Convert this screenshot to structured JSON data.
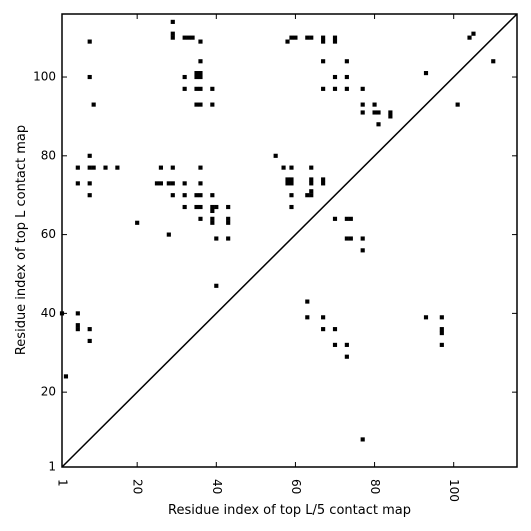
{
  "chart_data": {
    "type": "scatter",
    "xlabel": "Residue index of top L/5 contact map",
    "ylabel": "Residue index of top L contact map",
    "xlim": [
      1,
      116
    ],
    "ylim": [
      1,
      116
    ],
    "xticks": [
      1,
      20,
      40,
      60,
      80,
      100
    ],
    "yticks": [
      1,
      20,
      40,
      60,
      80,
      100
    ],
    "xtick_labels": [
      "1",
      "20",
      "40",
      "60",
      "80",
      "100"
    ],
    "ytick_labels": [
      "1",
      "20",
      "40",
      "60",
      "80",
      "100"
    ],
    "xtick_rotation_deg": 90,
    "diagonal": true,
    "grid": false,
    "marker": "square",
    "color": "#000000",
    "series": [
      {
        "points": [
          [
            29,
            114
          ],
          [
            29,
            111
          ],
          [
            29,
            110
          ],
          [
            32,
            110
          ],
          [
            33,
            110
          ],
          [
            36,
            109
          ],
          [
            8,
            109
          ],
          [
            34,
            110
          ],
          [
            58,
            109
          ],
          [
            59,
            110
          ],
          [
            60,
            110
          ],
          [
            63,
            110
          ],
          [
            64,
            110
          ],
          [
            67,
            110
          ],
          [
            67,
            109
          ],
          [
            70,
            110
          ],
          [
            70,
            109
          ],
          [
            8,
            100
          ],
          [
            32,
            100
          ],
          [
            35,
            101
          ],
          [
            36,
            101
          ],
          [
            35,
            100
          ],
          [
            36,
            100
          ],
          [
            36,
            104
          ],
          [
            9,
            93
          ],
          [
            32,
            97
          ],
          [
            35,
            97
          ],
          [
            36,
            97
          ],
          [
            39,
            97
          ],
          [
            35,
            93
          ],
          [
            36,
            93
          ],
          [
            39,
            93
          ],
          [
            67,
            104
          ],
          [
            70,
            100
          ],
          [
            73,
            104
          ],
          [
            73,
            100
          ],
          [
            67,
            97
          ],
          [
            70,
            97
          ],
          [
            73,
            97
          ],
          [
            77,
            97
          ],
          [
            77,
            93
          ],
          [
            80,
            93
          ],
          [
            77,
            91
          ],
          [
            80,
            91
          ],
          [
            81,
            91
          ],
          [
            84,
            91
          ],
          [
            84,
            90
          ],
          [
            81,
            88
          ],
          [
            93,
            101
          ],
          [
            101,
            93
          ],
          [
            104,
            110
          ],
          [
            105,
            111
          ],
          [
            110,
            104
          ],
          [
            8,
            80
          ],
          [
            5,
            77
          ],
          [
            8,
            77
          ],
          [
            9,
            77
          ],
          [
            12,
            77
          ],
          [
            15,
            77
          ],
          [
            5,
            73
          ],
          [
            8,
            73
          ],
          [
            8,
            70
          ],
          [
            25,
            73
          ],
          [
            26,
            73
          ],
          [
            26,
            77
          ],
          [
            28,
            73
          ],
          [
            29,
            73
          ],
          [
            29,
            77
          ],
          [
            29,
            70
          ],
          [
            32,
            73
          ],
          [
            32,
            70
          ],
          [
            32,
            67
          ],
          [
            20,
            63
          ],
          [
            28,
            60
          ],
          [
            36,
            77
          ],
          [
            36,
            73
          ],
          [
            35,
            70
          ],
          [
            36,
            70
          ],
          [
            39,
            70
          ],
          [
            35,
            67
          ],
          [
            36,
            67
          ],
          [
            39,
            67
          ],
          [
            40,
            67
          ],
          [
            39,
            66
          ],
          [
            43,
            67
          ],
          [
            39,
            64
          ],
          [
            39,
            63
          ],
          [
            36,
            64
          ],
          [
            43,
            64
          ],
          [
            43,
            63
          ],
          [
            40,
            59
          ],
          [
            43,
            59
          ],
          [
            40,
            47
          ],
          [
            55,
            80
          ],
          [
            57,
            77
          ],
          [
            59,
            77
          ],
          [
            58,
            74
          ],
          [
            59,
            74
          ],
          [
            58,
            73
          ],
          [
            59,
            73
          ],
          [
            59,
            70
          ],
          [
            59,
            67
          ],
          [
            63,
            70
          ],
          [
            64,
            70
          ],
          [
            64,
            71
          ],
          [
            64,
            73
          ],
          [
            64,
            74
          ],
          [
            64,
            77
          ],
          [
            67,
            74
          ],
          [
            67,
            73
          ],
          [
            70,
            64
          ],
          [
            73,
            64
          ],
          [
            74,
            64
          ],
          [
            73,
            59
          ],
          [
            74,
            59
          ],
          [
            77,
            59
          ],
          [
            77,
            56
          ],
          [
            1,
            40
          ],
          [
            5,
            40
          ],
          [
            5,
            37
          ],
          [
            5,
            36
          ],
          [
            8,
            36
          ],
          [
            8,
            33
          ],
          [
            2,
            24
          ],
          [
            63,
            43
          ],
          [
            63,
            39
          ],
          [
            67,
            39
          ],
          [
            67,
            36
          ],
          [
            70,
            36
          ],
          [
            70,
            32
          ],
          [
            73,
            32
          ],
          [
            73,
            29
          ],
          [
            77,
            8
          ],
          [
            93,
            39
          ],
          [
            97,
            39
          ],
          [
            97,
            36
          ],
          [
            97,
            35
          ],
          [
            97,
            32
          ]
        ]
      }
    ]
  }
}
